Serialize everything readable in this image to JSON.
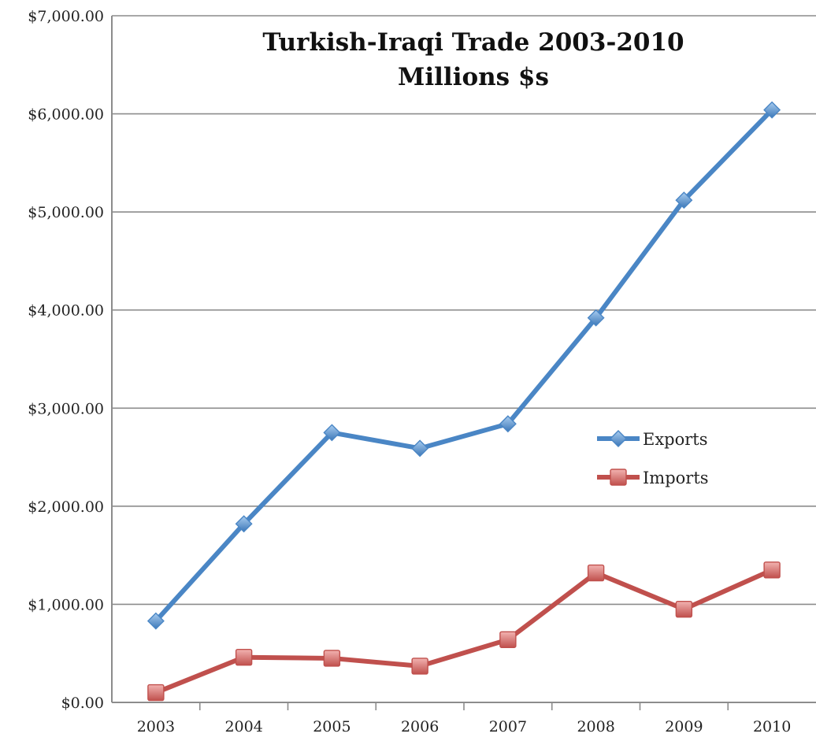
{
  "chart_data": {
    "type": "line",
    "title": "Turkish-Iraqi Trade 2003-2010",
    "subtitle": "Millions $s",
    "categories": [
      "2003",
      "2004",
      "2005",
      "2006",
      "2007",
      "2008",
      "2009",
      "2010"
    ],
    "y_tick_labels": [
      "$0.00",
      "$1,000.00",
      "$2,000.00",
      "$3,000.00",
      "$4,000.00",
      "$5,000.00",
      "$6,000.00",
      "$7,000.00"
    ],
    "ylim": [
      0,
      7000
    ],
    "y_tick_step": 1000,
    "grid": true,
    "legend_position": "right-middle",
    "series": [
      {
        "name": "Exports",
        "values": [
          830,
          1820,
          2750,
          2590,
          2840,
          3920,
          5120,
          6040
        ],
        "color": "#4a86c5",
        "marker": "diamond"
      },
      {
        "name": "Imports",
        "values": [
          100,
          460,
          450,
          370,
          640,
          1320,
          950,
          1350
        ],
        "color": "#c0504d",
        "marker": "square"
      }
    ]
  }
}
